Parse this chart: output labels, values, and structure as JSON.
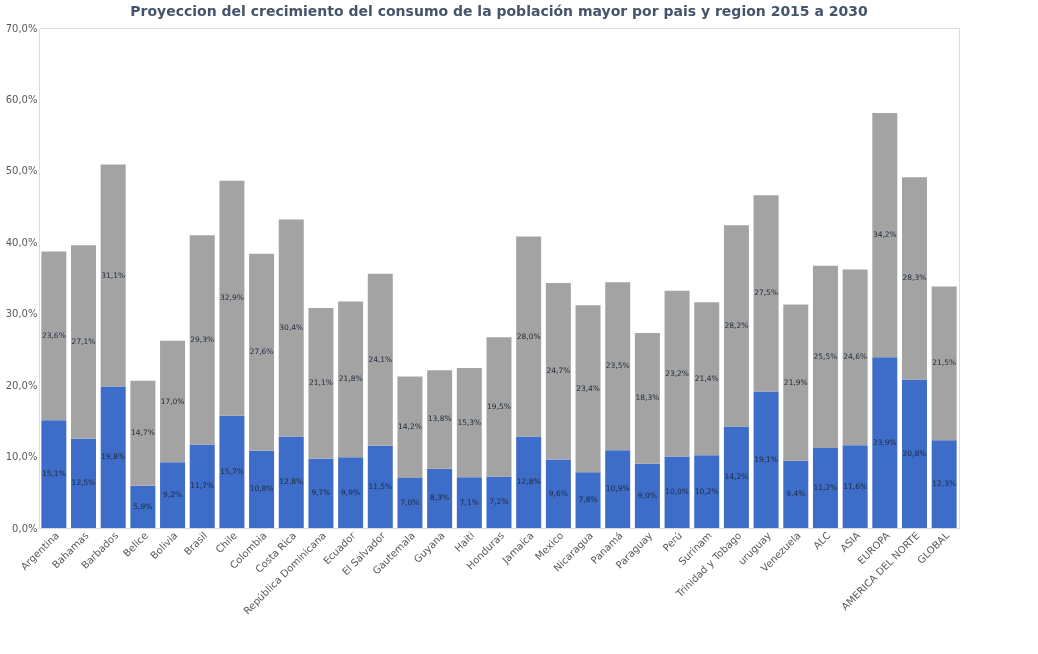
{
  "chart_data": {
    "type": "bar",
    "stacked": true,
    "title": "Proyeccion del crecimiento del consumo de la población mayor por pais y region 2015 a 2030",
    "categories": [
      "Argentina",
      "Bahamas",
      "Barbados",
      "Belice",
      "Bolivia",
      "Brasil",
      "Chile",
      "Colombia",
      "Costa Rica",
      "República Dominicana",
      "Ecuador",
      "El Salvador",
      "Gautemala",
      "Guyana",
      "Haiti",
      "Honduras",
      "Jamaica",
      "Mexico",
      "Nicaragua",
      "Panamá",
      "Paraguay",
      "Perú",
      "Surinam",
      "Trinidad y Tobago",
      "uruguay",
      "Venezuela",
      "ALC",
      "ASIA",
      "EUROPA",
      "AMERICA DEL NORTE",
      "GLOBAL"
    ],
    "series": [
      {
        "color": "#3d6cc9",
        "values": [
          15.1,
          12.5,
          19.8,
          5.9,
          9.2,
          11.7,
          15.7,
          10.8,
          12.8,
          9.7,
          9.9,
          11.5,
          7.0,
          8.3,
          7.1,
          7.2,
          12.8,
          9.6,
          7.8,
          10.9,
          9.0,
          10.0,
          10.2,
          14.2,
          19.1,
          9.4,
          11.2,
          11.6,
          23.9,
          20.8,
          12.3
        ],
        "value_labels": [
          "15,1%",
          "12,5%",
          "19,8%",
          "5,9%",
          "9,2%",
          "11,7%",
          "15,7%",
          "10,8%",
          "12,8%",
          "9,7%",
          "9,9%",
          "11,5%",
          "7,0%",
          "8,3%",
          "7,1%",
          "7,2%",
          "12,8%",
          "9,6%",
          "7,8%",
          "10,9%",
          "9,0%",
          "10,0%",
          "10,2%",
          "14,2%",
          "19,1%",
          "9,4%",
          "11,2%",
          "11,6%",
          "23,9%",
          "20,8%",
          "12,3%"
        ]
      },
      {
        "color": "#a3a3a3",
        "values": [
          23.6,
          27.1,
          31.1,
          14.7,
          17.0,
          29.3,
          32.9,
          27.6,
          30.4,
          21.1,
          21.8,
          24.1,
          14.2,
          13.8,
          15.3,
          19.5,
          28.0,
          24.7,
          23.4,
          23.5,
          18.3,
          23.2,
          21.4,
          28.2,
          27.5,
          21.9,
          25.5,
          24.6,
          34.2,
          28.3,
          21.5
        ],
        "value_labels": [
          "23,6%",
          "27,1%",
          "31,1%",
          "14,7%",
          "17,0%",
          "29,3%",
          "32,9%",
          "27,6%",
          "30,4%",
          "21,1%",
          "21,8%",
          "24,1%",
          "14,2%",
          "13,8%",
          "15,3%",
          "19,5%",
          "28,0%",
          "24,7%",
          "23,4%",
          "23,5%",
          "18,3%",
          "23,2%",
          "21,4%",
          "28,2%",
          "27,5%",
          "21,9%",
          "25,5%",
          "24,6%",
          "34,2%",
          "28,3%",
          "21,5%"
        ]
      }
    ],
    "ylim": [
      0,
      70
    ],
    "yticks": [
      {
        "value": 0,
        "label": "0,0%"
      },
      {
        "value": 10,
        "label": "10,0%"
      },
      {
        "value": 20,
        "label": "20,0%"
      },
      {
        "value": 30,
        "label": "30,0%"
      },
      {
        "value": 40,
        "label": "40,0%"
      },
      {
        "value": 50,
        "label": "50,0%"
      },
      {
        "value": 60,
        "label": "60,0%"
      },
      {
        "value": 70,
        "label": "70,0%"
      }
    ],
    "grid": false,
    "legend": false
  }
}
